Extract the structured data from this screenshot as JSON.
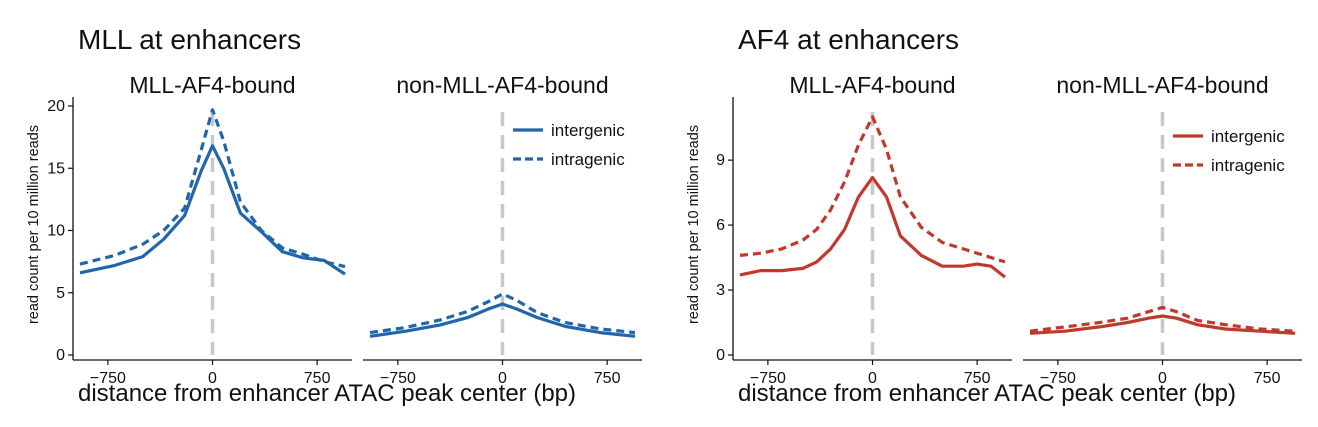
{
  "figures": [
    {
      "title": "MLL at enhancers",
      "ylabel": "read count per 10 million reads",
      "xlabel": "distance from enhancer ATAC peak center (bp)"
    },
    {
      "title": "AF4 at enhancers",
      "ylabel": "read count per 10 million reads",
      "xlabel": "distance from enhancer ATAC peak center (bp)"
    }
  ],
  "chart_data": [
    {
      "type": "line",
      "figure": "MLL at enhancers",
      "panel_title": "MLL-AF4-bound",
      "color": "#2166ac",
      "xlim": [
        -1000,
        1000
      ],
      "ylim": [
        0,
        20
      ],
      "xticks": [
        -750,
        0,
        750
      ],
      "yticks": [
        0,
        5,
        10,
        15,
        20
      ],
      "legend": false,
      "series": [
        {
          "name": "intergenic",
          "style": "solid",
          "x": [
            -950,
            -700,
            -500,
            -350,
            -200,
            -80,
            0,
            80,
            200,
            350,
            500,
            650,
            800,
            950
          ],
          "y": [
            6.6,
            7.2,
            7.9,
            9.3,
            11.2,
            14.8,
            16.8,
            15.0,
            11.4,
            9.9,
            8.3,
            7.8,
            7.6,
            6.5
          ]
        },
        {
          "name": "intragenic",
          "style": "dashed",
          "x": [
            -950,
            -700,
            -500,
            -350,
            -200,
            -80,
            0,
            80,
            200,
            350,
            500,
            650,
            800,
            950
          ],
          "y": [
            7.3,
            8.0,
            8.9,
            10.0,
            11.8,
            16.5,
            19.7,
            17.2,
            12.3,
            10.0,
            8.6,
            8.1,
            7.5,
            7.1
          ]
        }
      ]
    },
    {
      "type": "line",
      "figure": "MLL at enhancers",
      "panel_title": "non-MLL-AF4-bound",
      "color": "#2166ac",
      "xlim": [
        -1000,
        1000
      ],
      "ylim": [
        0,
        20
      ],
      "xticks": [
        -750,
        0,
        750
      ],
      "legend": true,
      "series": [
        {
          "name": "intergenic",
          "style": "solid",
          "x": [
            -950,
            -700,
            -450,
            -250,
            -100,
            0,
            100,
            250,
            450,
            700,
            950
          ],
          "y": [
            1.5,
            1.9,
            2.4,
            3.0,
            3.7,
            4.1,
            3.7,
            3.0,
            2.3,
            1.8,
            1.5
          ]
        },
        {
          "name": "intragenic",
          "style": "dashed",
          "x": [
            -950,
            -700,
            -450,
            -250,
            -100,
            0,
            100,
            250,
            450,
            700,
            950
          ],
          "y": [
            1.8,
            2.2,
            2.8,
            3.5,
            4.3,
            4.9,
            4.4,
            3.4,
            2.6,
            2.1,
            1.8
          ]
        }
      ]
    },
    {
      "type": "line",
      "figure": "AF4 at enhancers",
      "panel_title": "MLL-AF4-bound",
      "color": "#c0392b",
      "xlim": [
        -1000,
        1000
      ],
      "ylim": [
        0,
        11.5
      ],
      "xticks": [
        -750,
        0,
        750
      ],
      "yticks": [
        0,
        3,
        6,
        9
      ],
      "legend": false,
      "series": [
        {
          "name": "intergenic",
          "style": "solid",
          "x": [
            -950,
            -800,
            -650,
            -500,
            -400,
            -300,
            -200,
            -100,
            0,
            100,
            200,
            350,
            500,
            650,
            750,
            850,
            950
          ],
          "y": [
            3.7,
            3.9,
            3.9,
            4.0,
            4.3,
            4.9,
            5.8,
            7.3,
            8.2,
            7.3,
            5.5,
            4.6,
            4.1,
            4.1,
            4.2,
            4.1,
            3.6
          ]
        },
        {
          "name": "intragenic",
          "style": "dashed",
          "x": [
            -950,
            -800,
            -650,
            -500,
            -400,
            -300,
            -200,
            -100,
            0,
            100,
            200,
            350,
            500,
            650,
            800,
            950
          ],
          "y": [
            4.6,
            4.7,
            4.9,
            5.3,
            5.8,
            6.7,
            8.0,
            9.7,
            11.0,
            9.5,
            7.3,
            5.9,
            5.2,
            4.9,
            4.6,
            4.3
          ]
        }
      ]
    },
    {
      "type": "line",
      "figure": "AF4 at enhancers",
      "panel_title": "non-MLL-AF4-bound",
      "color": "#c0392b",
      "xlim": [
        -1000,
        1000
      ],
      "ylim": [
        0,
        11.5
      ],
      "xticks": [
        -750,
        0,
        750
      ],
      "legend": true,
      "series": [
        {
          "name": "intergenic",
          "style": "solid",
          "x": [
            -950,
            -700,
            -450,
            -250,
            -100,
            0,
            100,
            250,
            450,
            700,
            950
          ],
          "y": [
            1.0,
            1.1,
            1.3,
            1.5,
            1.7,
            1.8,
            1.7,
            1.4,
            1.2,
            1.1,
            1.0
          ]
        },
        {
          "name": "intragenic",
          "style": "dashed",
          "x": [
            -950,
            -700,
            -450,
            -250,
            -100,
            0,
            100,
            250,
            450,
            700,
            950
          ],
          "y": [
            1.1,
            1.3,
            1.5,
            1.7,
            2.0,
            2.2,
            2.0,
            1.6,
            1.4,
            1.2,
            1.1
          ]
        }
      ]
    }
  ]
}
